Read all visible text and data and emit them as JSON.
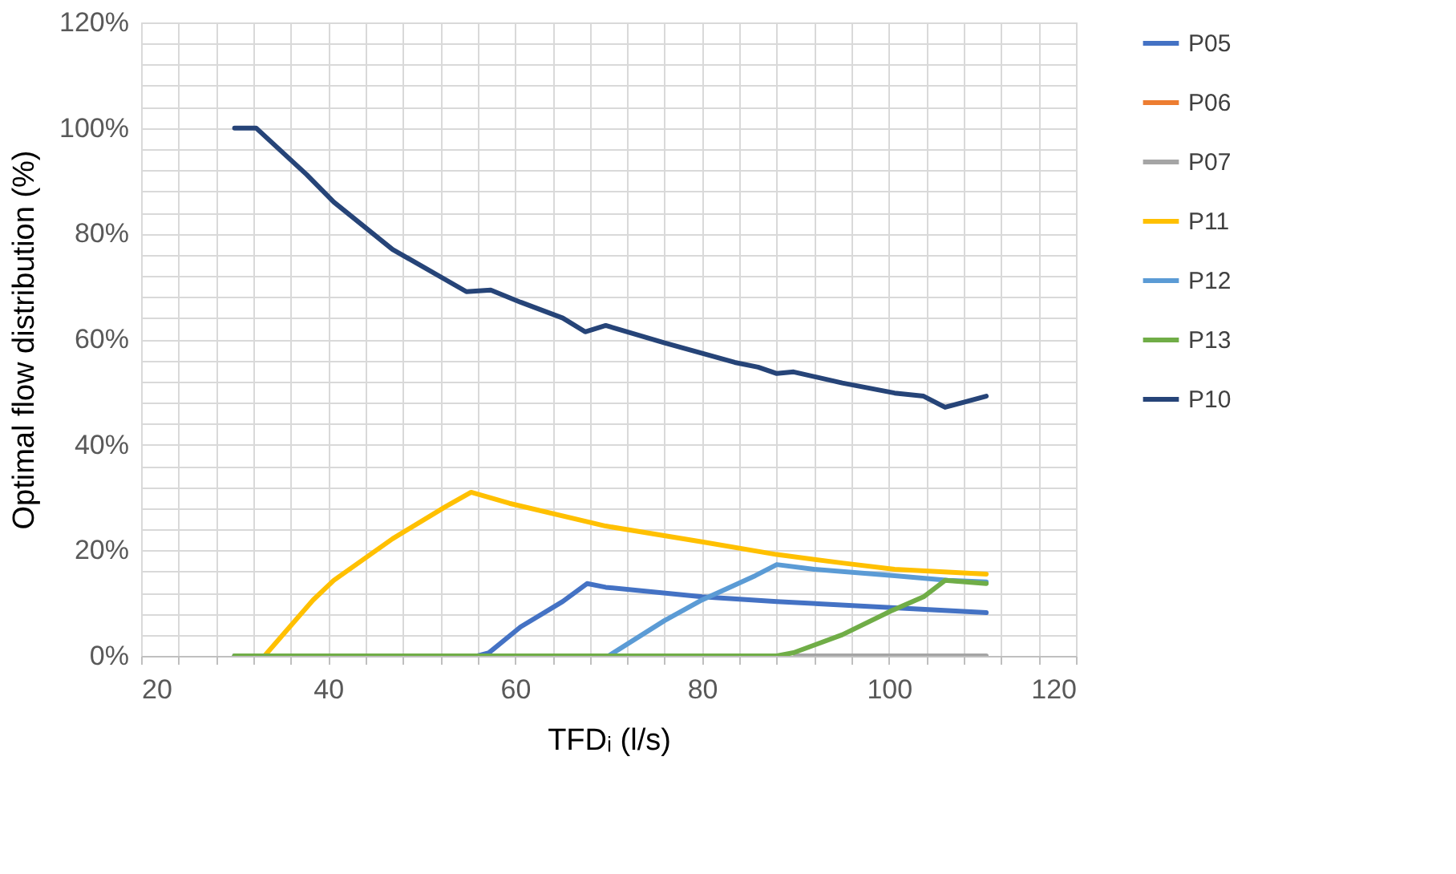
{
  "chart_data": {
    "type": "line",
    "xlabel": "TFDᵢ (l/s)",
    "ylabel": "Optimal flow distribution (%)",
    "xlim": [
      20,
      120
    ],
    "ylim": [
      0,
      120
    ],
    "xticks": [
      20,
      {
        "value": 24,
        "label": null
      },
      {
        "value": 28,
        "label": null
      },
      {
        "value": 32,
        "label": null
      },
      {
        "value": 36,
        "label": null
      },
      40,
      {
        "value": 44,
        "label": null
      },
      {
        "value": 48,
        "label": null
      },
      {
        "value": 52,
        "label": null
      },
      {
        "value": 56,
        "label": null
      },
      60,
      {
        "value": 64,
        "label": null
      },
      {
        "value": 68,
        "label": null
      },
      {
        "value": 72,
        "label": null
      },
      {
        "value": 76,
        "label": null
      },
      80,
      {
        "value": 84,
        "label": null
      },
      {
        "value": 88,
        "label": null
      },
      {
        "value": 92,
        "label": null
      },
      {
        "value": 96,
        "label": null
      },
      100,
      {
        "value": 104,
        "label": null
      },
      {
        "value": 108,
        "label": null
      },
      {
        "value": 112,
        "label": null
      },
      {
        "value": 116,
        "label": null
      },
      120
    ],
    "yticks": [
      {
        "value": 0,
        "label": "0%"
      },
      {
        "value": 4,
        "label": null
      },
      {
        "value": 8,
        "label": null
      },
      {
        "value": 12,
        "label": null
      },
      {
        "value": 16,
        "label": null
      },
      {
        "value": 20,
        "label": "20%"
      },
      {
        "value": 24,
        "label": null
      },
      {
        "value": 28,
        "label": null
      },
      {
        "value": 32,
        "label": null
      },
      {
        "value": 36,
        "label": null
      },
      {
        "value": 40,
        "label": "40%"
      },
      {
        "value": 44,
        "label": null
      },
      {
        "value": 48,
        "label": null
      },
      {
        "value": 52,
        "label": null
      },
      {
        "value": 56,
        "label": null
      },
      {
        "value": 60,
        "label": "60%"
      },
      {
        "value": 64,
        "label": null
      },
      {
        "value": 68,
        "label": null
      },
      {
        "value": 72,
        "label": null
      },
      {
        "value": 76,
        "label": null
      },
      {
        "value": 80,
        "label": "80%"
      },
      {
        "value": 84,
        "label": null
      },
      {
        "value": 88,
        "label": null
      },
      {
        "value": 92,
        "label": null
      },
      {
        "value": 96,
        "label": null
      },
      {
        "value": 100,
        "label": "100%"
      },
      {
        "value": 104,
        "label": null
      },
      {
        "value": 108,
        "label": null
      },
      {
        "value": 112,
        "label": null
      },
      {
        "value": 116,
        "label": null
      },
      {
        "value": 120,
        "label": "120%"
      }
    ],
    "grid": true,
    "legend": "right",
    "marker": "none",
    "line_style": "solid",
    "series": [
      {
        "name": "P05",
        "color": "#4472c4",
        "x": [
          30,
          56,
          57.2,
          60.6,
          65.1,
          67.7,
          69.7,
          80,
          88,
          100.6,
          110.4
        ],
        "values": [
          0,
          0,
          0.6,
          5.5,
          10.3,
          13.7,
          13,
          11.2,
          10.3,
          9.1,
          8.2
        ]
      },
      {
        "name": "P06",
        "color": "#ed7d31"
      },
      {
        "name": "P07",
        "color": "#a5a5a5",
        "x": [
          90,
          110.4
        ],
        "values": [
          0,
          0
        ]
      },
      {
        "name": "P11",
        "color": "#ffc000",
        "x": [
          30,
          33.2,
          38.4,
          40.6,
          46.9,
          52.6,
          55.3,
          59.4,
          69.7,
          80,
          88,
          95,
          100.6,
          110.4
        ],
        "values": [
          0,
          0,
          10.6,
          14.3,
          22.2,
          28.3,
          31,
          28.9,
          24.6,
          21.6,
          19.2,
          17.6,
          16.4,
          15.5
        ]
      },
      {
        "name": "P12",
        "color": "#5b9bd5",
        "x": [
          30,
          70,
          76,
          80,
          85.7,
          88,
          92,
          100.6,
          106.3,
          110.4
        ],
        "values": [
          0,
          0,
          6.7,
          10.6,
          15.2,
          17.3,
          16.4,
          15.2,
          14.3,
          14
        ]
      },
      {
        "name": "P13",
        "color": "#70ad47",
        "x": [
          30,
          88,
          89.8,
          95,
          100.2,
          103.7,
          106,
          110.4
        ],
        "values": [
          0,
          0,
          0.6,
          4,
          8.5,
          11.2,
          14.3,
          13.7
        ]
      },
      {
        "name": "P10",
        "color": "#264478",
        "x": [
          30,
          32.3,
          37.7,
          40.6,
          46.9,
          54.8,
          57.4,
          60.6,
          65.1,
          67.5,
          69.7,
          76,
          83.5,
          86,
          88,
          89.8,
          95,
          100.6,
          103.7,
          106,
          110.4
        ],
        "values": [
          100,
          100,
          91.2,
          86,
          77,
          69,
          69.3,
          67,
          64,
          61.4,
          62.6,
          59.3,
          55.6,
          54.7,
          53.5,
          53.8,
          51.7,
          49.8,
          49.2,
          47.1,
          49.2
        ]
      }
    ]
  }
}
